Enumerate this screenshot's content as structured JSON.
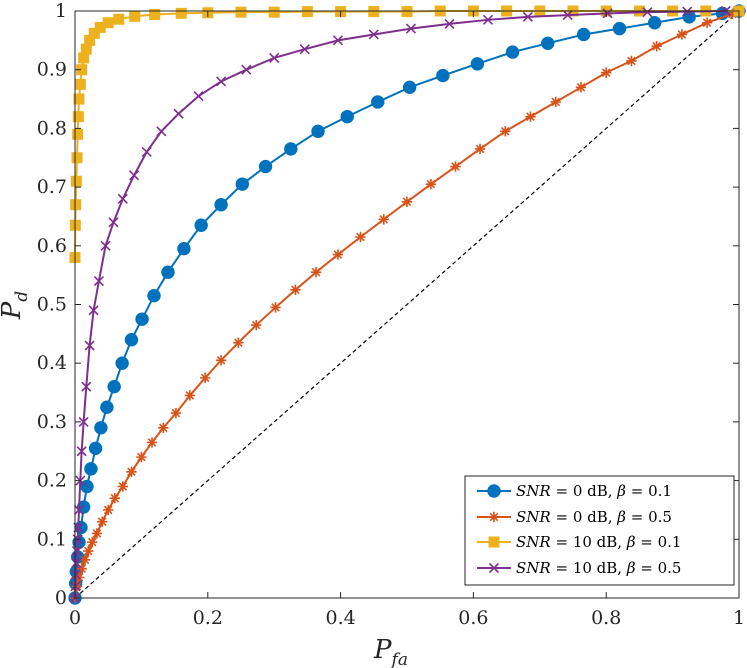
{
  "chart_data": {
    "type": "line",
    "title": "",
    "xlabel": "P_fa",
    "ylabel": "P_d",
    "xlabel_parts": {
      "main": "P",
      "sub": "fa"
    },
    "ylabel_parts": {
      "main": "P",
      "sub": "d"
    },
    "xlim": [
      0,
      1
    ],
    "ylim": [
      0,
      1
    ],
    "grid": false,
    "legend_position": "bottom-right",
    "x_ticks": [
      "0",
      "0.2",
      "0.4",
      "0.6",
      "0.8",
      "1"
    ],
    "y_ticks": [
      "0",
      "0.1",
      "0.2",
      "0.3",
      "0.4",
      "0.5",
      "0.6",
      "0.7",
      "0.8",
      "0.9",
      "1"
    ],
    "reference_line": {
      "name": "chance diagonal",
      "x": [
        0,
        1
      ],
      "y": [
        0,
        1
      ],
      "color": "#000000",
      "style": "dashed"
    },
    "series": [
      {
        "name": "SNR = 0 dB, β = 0.1",
        "legend_parts": {
          "snr": "0",
          "beta": "0.1"
        },
        "color": "#0072BD",
        "marker": "circle",
        "x": [
          0,
          0.001,
          0.002,
          0.004,
          0.006,
          0.009,
          0.013,
          0.018,
          0.024,
          0.031,
          0.039,
          0.048,
          0.059,
          0.071,
          0.085,
          0.101,
          0.119,
          0.14,
          0.164,
          0.19,
          0.22,
          0.252,
          0.287,
          0.325,
          0.366,
          0.41,
          0.456,
          0.504,
          0.554,
          0.606,
          0.659,
          0.712,
          0.766,
          0.82,
          0.873,
          0.925,
          0.975,
          1.0
        ],
        "y": [
          0,
          0.025,
          0.045,
          0.07,
          0.095,
          0.12,
          0.155,
          0.19,
          0.22,
          0.255,
          0.29,
          0.325,
          0.36,
          0.4,
          0.44,
          0.475,
          0.515,
          0.555,
          0.595,
          0.635,
          0.67,
          0.705,
          0.735,
          0.765,
          0.795,
          0.82,
          0.845,
          0.87,
          0.89,
          0.91,
          0.93,
          0.945,
          0.96,
          0.97,
          0.98,
          0.99,
          0.996,
          1.0
        ]
      },
      {
        "name": "SNR = 0 dB, β = 0.5",
        "legend_parts": {
          "snr": "0",
          "beta": "0.5"
        },
        "color": "#D95319",
        "marker": "asterisk",
        "x": [
          0,
          0.003,
          0.006,
          0.01,
          0.015,
          0.02,
          0.026,
          0.033,
          0.041,
          0.05,
          0.06,
          0.072,
          0.085,
          0.1,
          0.116,
          0.133,
          0.152,
          0.173,
          0.196,
          0.22,
          0.246,
          0.273,
          0.302,
          0.332,
          0.363,
          0.396,
          0.43,
          0.465,
          0.5,
          0.536,
          0.573,
          0.61,
          0.648,
          0.686,
          0.724,
          0.762,
          0.8,
          0.838,
          0.876,
          0.914,
          0.952,
          0.99
        ],
        "y": [
          0,
          0.02,
          0.035,
          0.05,
          0.065,
          0.08,
          0.095,
          0.11,
          0.13,
          0.15,
          0.17,
          0.19,
          0.215,
          0.24,
          0.265,
          0.29,
          0.315,
          0.345,
          0.375,
          0.405,
          0.435,
          0.465,
          0.495,
          0.525,
          0.555,
          0.585,
          0.615,
          0.645,
          0.675,
          0.705,
          0.735,
          0.765,
          0.795,
          0.82,
          0.845,
          0.87,
          0.895,
          0.915,
          0.94,
          0.96,
          0.98,
          0.995
        ]
      },
      {
        "name": "SNR = 10 dB, β = 0.1",
        "legend_parts": {
          "snr": "10",
          "beta": "0.1"
        },
        "color": "#EDB120",
        "marker": "square",
        "x": [
          0,
          0.0005,
          0.001,
          0.002,
          0.003,
          0.004,
          0.005,
          0.006,
          0.008,
          0.01,
          0.013,
          0.017,
          0.022,
          0.029,
          0.038,
          0.05,
          0.066,
          0.09,
          0.12,
          0.16,
          0.2,
          0.25,
          0.3,
          0.35,
          0.4,
          0.45,
          0.5,
          0.55,
          0.6,
          0.65,
          0.7,
          0.75,
          0.8,
          0.85,
          0.9,
          0.95,
          1.0
        ],
        "y": [
          0.58,
          0.635,
          0.67,
          0.71,
          0.75,
          0.79,
          0.82,
          0.85,
          0.875,
          0.9,
          0.92,
          0.935,
          0.95,
          0.962,
          0.972,
          0.98,
          0.986,
          0.991,
          0.994,
          0.996,
          0.997,
          0.998,
          0.998,
          0.999,
          0.999,
          0.999,
          0.999,
          1.0,
          1.0,
          1.0,
          1.0,
          1.0,
          1.0,
          1.0,
          1.0,
          1.0,
          1.0
        ]
      },
      {
        "name": "SNR = 10 dB, β = 0.5",
        "legend_parts": {
          "snr": "10",
          "beta": "0.5"
        },
        "color": "#7E2F8E",
        "marker": "cross",
        "x": [
          0,
          0.0005,
          0.001,
          0.002,
          0.003,
          0.004,
          0.005,
          0.006,
          0.008,
          0.01,
          0.013,
          0.017,
          0.022,
          0.028,
          0.036,
          0.046,
          0.058,
          0.072,
          0.089,
          0.108,
          0.13,
          0.156,
          0.186,
          0.22,
          0.258,
          0.3,
          0.346,
          0.396,
          0.45,
          0.506,
          0.564,
          0.622,
          0.682,
          0.742,
          0.802,
          0.862,
          0.922,
          0.98
        ],
        "y": [
          0,
          0.02,
          0.04,
          0.06,
          0.08,
          0.1,
          0.12,
          0.15,
          0.2,
          0.25,
          0.3,
          0.36,
          0.43,
          0.49,
          0.54,
          0.6,
          0.64,
          0.68,
          0.72,
          0.76,
          0.795,
          0.825,
          0.855,
          0.88,
          0.9,
          0.92,
          0.935,
          0.95,
          0.96,
          0.97,
          0.978,
          0.985,
          0.99,
          0.993,
          0.996,
          0.998,
          0.999,
          1.0
        ]
      }
    ]
  }
}
